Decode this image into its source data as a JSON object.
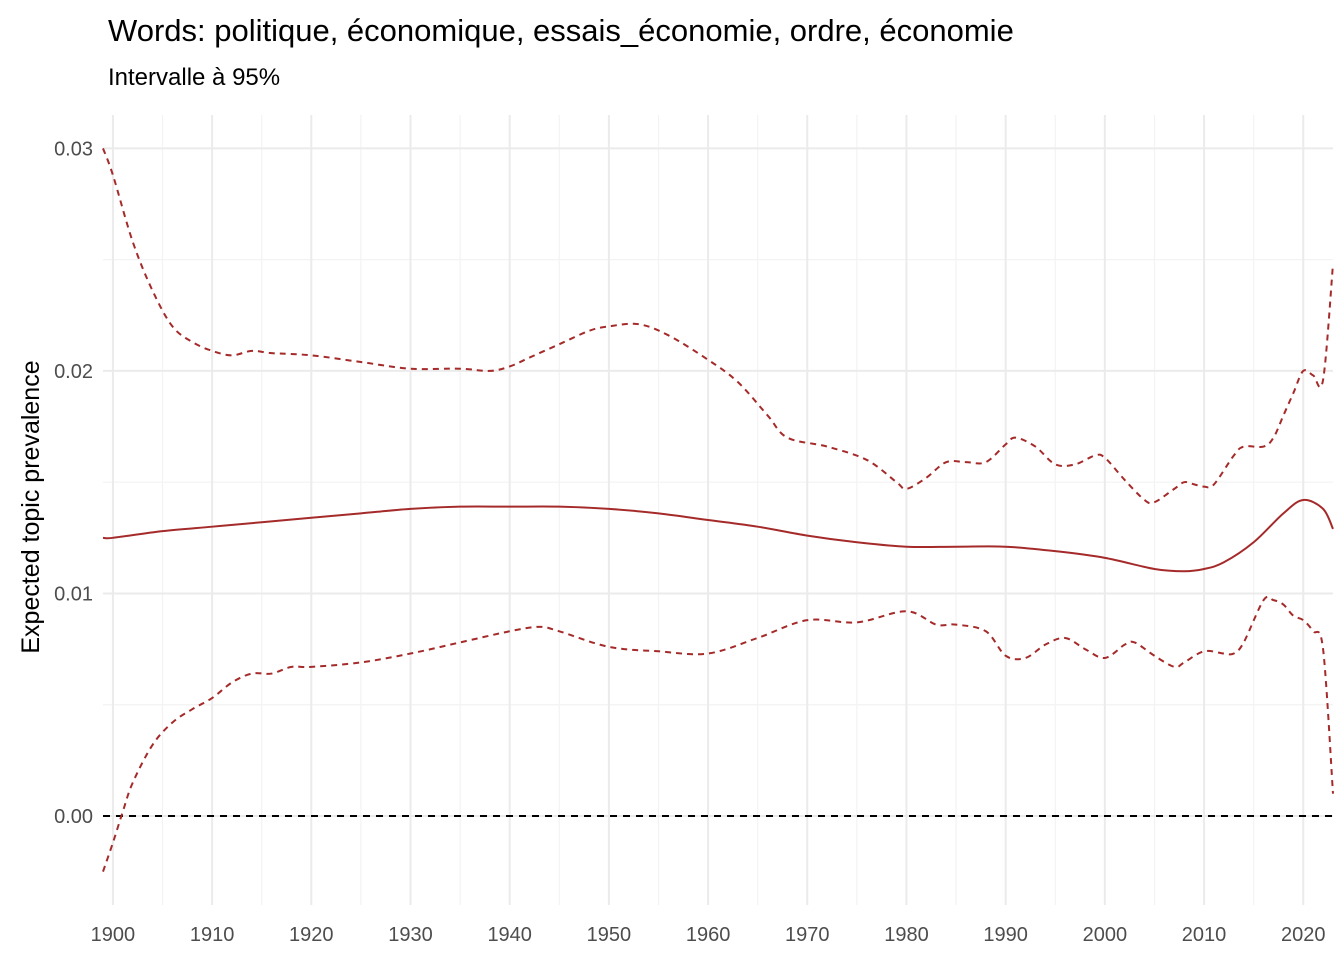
{
  "chart_data": {
    "type": "line",
    "title": "Words: politique, économique, essais_économie, ordre, économie",
    "subtitle": "Intervalle à 95%",
    "xlabel": "",
    "ylabel": "Expected topic prevalence",
    "xlim": [
      1899,
      2023
    ],
    "ylim": [
      -0.004,
      0.0315
    ],
    "x_ticks": [
      1900,
      1910,
      1920,
      1930,
      1940,
      1950,
      1960,
      1970,
      1980,
      1990,
      2000,
      2010,
      2020
    ],
    "y_ticks": [
      0.0,
      0.01,
      0.02,
      0.03
    ],
    "y_tick_labels": [
      "0.00",
      "0.01",
      "0.02",
      "0.03"
    ],
    "grid": true,
    "legend": "none",
    "reference_line": {
      "y": 0.0,
      "style": "dashed",
      "color": "#000000"
    },
    "colors": {
      "series": "#a52a2a",
      "reference": "#000000"
    },
    "series": [
      {
        "role": "estimate",
        "style": "solid",
        "x": [
          1899,
          1900,
          1905,
          1910,
          1915,
          1920,
          1925,
          1930,
          1935,
          1940,
          1945,
          1950,
          1955,
          1960,
          1965,
          1970,
          1975,
          1980,
          1985,
          1990,
          1995,
          2000,
          2005,
          2008,
          2010,
          2012,
          2015,
          2018,
          2020,
          2022,
          2023
        ],
        "y": [
          0.0125,
          0.0125,
          0.0128,
          0.013,
          0.0132,
          0.0134,
          0.0136,
          0.0138,
          0.0139,
          0.0139,
          0.0139,
          0.0138,
          0.0136,
          0.0133,
          0.013,
          0.0126,
          0.0123,
          0.0121,
          0.0121,
          0.0121,
          0.0119,
          0.0116,
          0.0111,
          0.011,
          0.0111,
          0.0114,
          0.0123,
          0.0136,
          0.0142,
          0.0138,
          0.0129
        ]
      },
      {
        "role": "upper",
        "style": "dashed",
        "x": [
          1899,
          1900,
          1902,
          1904,
          1906,
          1908,
          1910,
          1912,
          1914,
          1916,
          1920,
          1925,
          1930,
          1935,
          1938,
          1940,
          1942,
          1945,
          1948,
          1950,
          1953,
          1956,
          1960,
          1963,
          1966,
          1968,
          1972,
          1976,
          1979,
          1980,
          1982,
          1984,
          1986,
          1988,
          1990,
          1991,
          1993,
          1995,
          1997,
          1999,
          2000,
          2002,
          2004,
          2005,
          2007,
          2008,
          2009,
          2010,
          2011,
          2013,
          2014,
          2016,
          2017,
          2018,
          2019,
          2020,
          2021,
          2022,
          2023
        ],
        "y": [
          0.03,
          0.0288,
          0.0258,
          0.0236,
          0.022,
          0.0213,
          0.0209,
          0.0207,
          0.0209,
          0.0208,
          0.0207,
          0.0204,
          0.0201,
          0.0201,
          0.02,
          0.0202,
          0.0206,
          0.0212,
          0.0218,
          0.022,
          0.0221,
          0.0216,
          0.0205,
          0.0195,
          0.018,
          0.017,
          0.0166,
          0.016,
          0.015,
          0.0147,
          0.0152,
          0.0159,
          0.0159,
          0.0159,
          0.0167,
          0.017,
          0.0166,
          0.0158,
          0.0158,
          0.0162,
          0.0161,
          0.0151,
          0.0142,
          0.0141,
          0.0147,
          0.015,
          0.0149,
          0.0148,
          0.0149,
          0.0162,
          0.0166,
          0.0166,
          0.017,
          0.018,
          0.019,
          0.02,
          0.0198,
          0.0196,
          0.0248
        ]
      },
      {
        "role": "lower",
        "style": "dashed",
        "x": [
          1899,
          1900,
          1901,
          1902,
          1904,
          1906,
          1908,
          1910,
          1912,
          1914,
          1916,
          1918,
          1920,
          1925,
          1930,
          1935,
          1940,
          1943,
          1945,
          1950,
          1955,
          1960,
          1965,
          1970,
          1975,
          1980,
          1983,
          1985,
          1988,
          1990,
          1992,
          1994,
          1996,
          1998,
          2000,
          2002,
          2003,
          2005,
          2007,
          2008,
          2010,
          2012,
          2013,
          2014,
          2016,
          2017,
          2018,
          2019,
          2020,
          2021,
          2022,
          2023
        ],
        "y": [
          -0.0025,
          -0.0012,
          0.0002,
          0.0015,
          0.0032,
          0.0042,
          0.0048,
          0.0053,
          0.006,
          0.0064,
          0.0064,
          0.0067,
          0.0067,
          0.0069,
          0.0073,
          0.0078,
          0.0083,
          0.0085,
          0.0083,
          0.0076,
          0.0074,
          0.0073,
          0.008,
          0.0088,
          0.0087,
          0.0092,
          0.0086,
          0.0086,
          0.0083,
          0.0072,
          0.0071,
          0.0077,
          0.008,
          0.0075,
          0.0071,
          0.0077,
          0.0078,
          0.0072,
          0.0067,
          0.0069,
          0.0074,
          0.0073,
          0.0073,
          0.0078,
          0.0097,
          0.0097,
          0.0095,
          0.009,
          0.0088,
          0.0083,
          0.0075,
          0.001
        ]
      }
    ]
  }
}
